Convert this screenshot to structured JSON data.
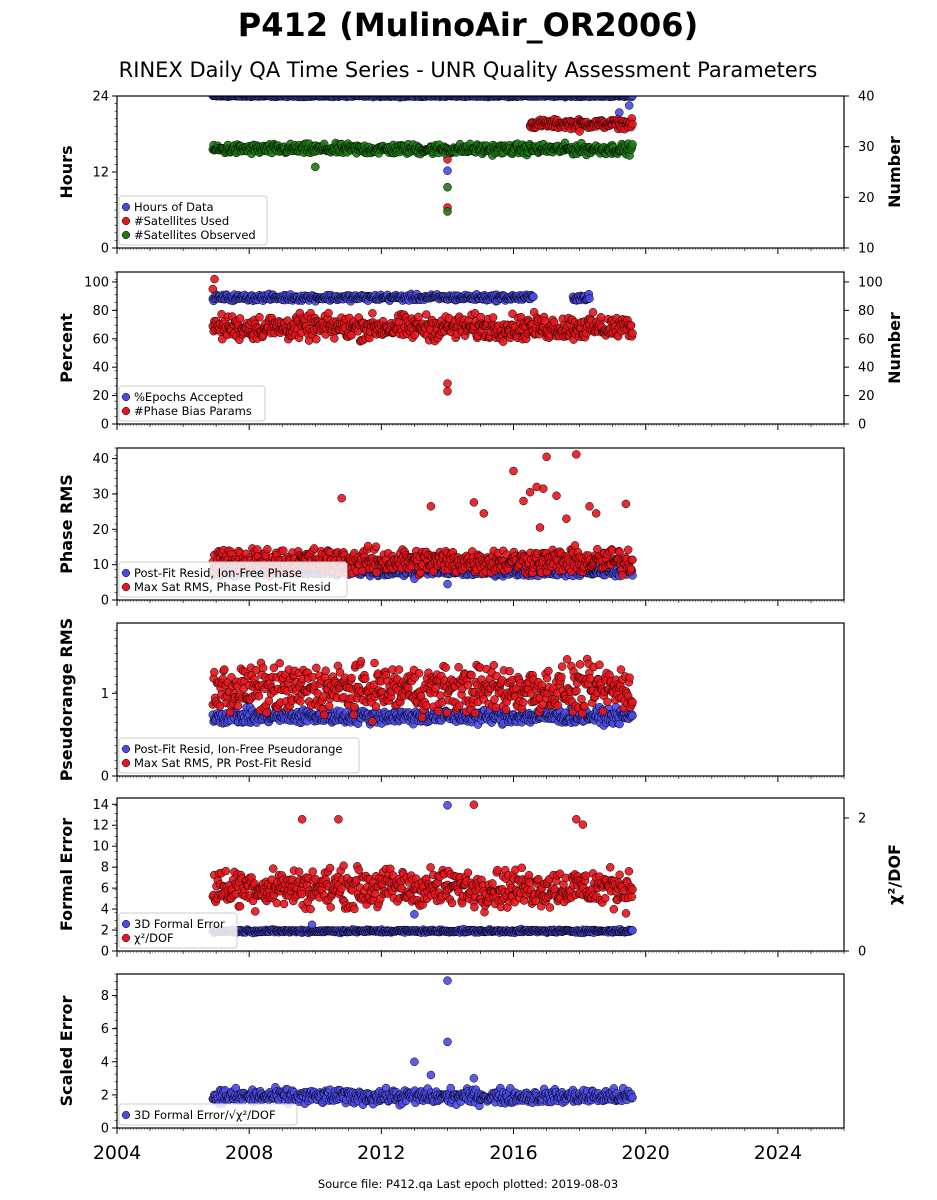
{
  "title": "P412 (MulinoAir_OR2006)",
  "subtitle": "RINEX Daily QA Time Series - UNR Quality Assessment Parameters",
  "source_text": "Source file: P412.qa Last epoch plotted: 2019-08-03",
  "x_axis": {
    "range": [
      2004,
      2026
    ],
    "ticks": [
      "2004",
      "2008",
      "2012",
      "2016",
      "2020",
      "2024"
    ]
  },
  "colors": {
    "blue": "#4a4ae8",
    "red": "#e8141c",
    "green": "#1c7a12",
    "gray": "#c8c8cc"
  },
  "panels": [
    {
      "ylabel": "Hours",
      "ylabel2": "Number",
      "yticks": [
        "0",
        "12",
        "24"
      ],
      "y2ticks": [
        "10",
        "20",
        "30",
        "40"
      ],
      "legend": [
        "Hours of Data",
        "#Satellites Used",
        "#Satellites Observed"
      ]
    },
    {
      "ylabel": "Percent",
      "ylabel2": "Number",
      "yticks": [
        "0",
        "20",
        "40",
        "60",
        "80",
        "100"
      ],
      "y2ticks": [
        "0",
        "20",
        "40",
        "60",
        "80",
        "100"
      ],
      "legend": [
        "%Epochs Accepted",
        "#Phase Bias Params"
      ]
    },
    {
      "ylabel": "Phase RMS",
      "yticks": [
        "0",
        "10",
        "20",
        "30",
        "40"
      ],
      "legend": [
        "Post-Fit Resid, Ion-Free Phase",
        "Max Sat RMS, Phase Post-Fit Resid"
      ]
    },
    {
      "ylabel": "Pseudorange RMS",
      "yticks": [
        "0",
        "1"
      ],
      "legend": [
        "Post-Fit Resid, Ion-Free Pseudorange",
        "Max Sat RMS, PR Post-Fit Resid"
      ]
    },
    {
      "ylabel": "Formal Error",
      "ylabel2": "χ²/DOF",
      "yticks": [
        "0",
        "2",
        "4",
        "6",
        "8",
        "10",
        "12",
        "14"
      ],
      "y2ticks": [
        "0",
        "2"
      ],
      "legend": [
        "3D Formal Error",
        "χ²/DOF"
      ]
    },
    {
      "ylabel": "Scaled Error",
      "yticks": [
        "0",
        "2",
        "4",
        "6",
        "8"
      ],
      "legend": [
        "3D Formal Error/√χ²/DOF"
      ]
    }
  ],
  "chart_data": [
    {
      "type": "scatter",
      "ylabel": "Hours",
      "ylim": [
        0,
        24
      ],
      "y2label": "Number",
      "y2lim": [
        10,
        40
      ],
      "series": [
        {
          "name": "Hours of Data",
          "axis": "left",
          "color": "#4a4ae8",
          "x_range": [
            2006.9,
            2019.6
          ],
          "typical": 24,
          "spread": 0.1,
          "outliers": [
            [
              2014.0,
              12.2
            ],
            [
              2019.5,
              22.5
            ],
            [
              2019.2,
              21.4
            ]
          ]
        },
        {
          "name": "#Satellites Used",
          "axis": "right",
          "color": "#e8141c",
          "x_range": [
            2016.5,
            2019.6
          ],
          "typical": 34.5,
          "spread": 0.6,
          "outliers": [
            [
              2014.0,
              27.5
            ],
            [
              2014.0,
              18.0
            ],
            [
              2018.0,
              33.0
            ]
          ]
        },
        {
          "name": "#Satellites Observed",
          "axis": "right",
          "color": "#1c7a12",
          "x_range": [
            2006.9,
            2019.6
          ],
          "typical": 29.5,
          "spread": 0.7,
          "outliers": [
            [
              2014.0,
              17.2
            ],
            [
              2014.0,
              22.0
            ],
            [
              2010.0,
              26.0
            ]
          ]
        }
      ]
    },
    {
      "type": "scatter",
      "ylabel": "Percent",
      "ylim": [
        0,
        107
      ],
      "y2label": "Number",
      "y2lim": [
        0,
        107
      ],
      "series": [
        {
          "name": "%Epochs Accepted",
          "axis": "left",
          "color": "#4a4ae8",
          "x_range": [
            2006.9,
            2016.6
          ],
          "typical": 89,
          "spread": 1.5,
          "extra_ranges": [
            [
              2017.8,
              2018.3
            ]
          ],
          "outliers": [
            [
              2019.5,
              65
            ]
          ]
        },
        {
          "name": "#Phase Bias Params",
          "axis": "right",
          "color": "#e8141c",
          "x_range": [
            2006.9,
            2019.6
          ],
          "typical": 68,
          "spread": 6,
          "outliers": [
            [
              2014.0,
              28.5
            ],
            [
              2014.0,
              23.0
            ],
            [
              2006.95,
              102
            ],
            [
              2006.9,
              95
            ]
          ]
        }
      ]
    },
    {
      "type": "scatter",
      "ylabel": "Phase RMS",
      "ylim": [
        0,
        43
      ],
      "series": [
        {
          "name": "Post-Fit Resid, Ion-Free Phase",
          "color": "#4a4ae8",
          "x_range": [
            2006.9,
            2019.6
          ],
          "typical": 8,
          "spread": 0.8,
          "outliers": [
            [
              2014.0,
              4.5
            ],
            [
              2013.0,
              6.0
            ]
          ]
        },
        {
          "name": "Max Sat RMS, Phase Post-Fit Resid",
          "color": "#e8141c",
          "x_range": [
            2006.9,
            2019.6
          ],
          "typical": 11,
          "spread": 2.5,
          "outliers": [
            [
              2017.9,
              41.2
            ],
            [
              2017.0,
              40.5
            ],
            [
              2016.0,
              36.5
            ],
            [
              2016.7,
              32.0
            ],
            [
              2016.5,
              30.5
            ],
            [
              2016.9,
              31.5
            ],
            [
              2016.3,
              28.0
            ],
            [
              2017.3,
              29.5
            ],
            [
              2010.8,
              28.8
            ],
            [
              2015.1,
              24.5
            ],
            [
              2018.5,
              24.5
            ],
            [
              2019.4,
              27.2
            ],
            [
              2014.8,
              27.6
            ],
            [
              2017.6,
              23.0
            ],
            [
              2018.3,
              26.5
            ],
            [
              2016.8,
              20.5
            ],
            [
              2013.5,
              26.5
            ]
          ]
        }
      ]
    },
    {
      "type": "scatter",
      "ylabel": "Pseudorange RMS",
      "ylim": [
        0,
        1.85
      ],
      "series": [
        {
          "name": "Post-Fit Resid, Ion-Free Pseudorange",
          "color": "#4a4ae8",
          "x_range": [
            2006.9,
            2019.6
          ],
          "typical": 0.72,
          "spread": 0.06
        },
        {
          "name": "Max Sat RMS, PR Post-Fit Resid",
          "color": "#e8141c",
          "x_range": [
            2006.9,
            2019.6
          ],
          "typical": 1.05,
          "spread": 0.2,
          "max": 1.82
        }
      ]
    },
    {
      "type": "scatter",
      "ylabel": "Formal Error",
      "ylim": [
        0,
        14.6
      ],
      "y2label": "χ²/DOF",
      "y2lim": [
        0,
        2.3
      ],
      "series": [
        {
          "name": "3D Formal Error",
          "axis": "left",
          "color": "#4a4ae8",
          "x_range": [
            2006.9,
            2019.6
          ],
          "typical": 1.9,
          "spread": 0.1,
          "outliers": [
            [
              2014.0,
              13.9
            ],
            [
              2013.0,
              3.5
            ],
            [
              2009.9,
              2.5
            ]
          ]
        },
        {
          "name": "χ²/DOF",
          "axis": "right",
          "color": "#e8141c",
          "x_range": [
            2006.9,
            2019.6
          ],
          "typical": 0.95,
          "spread": 0.2,
          "outliers": [
            [
              2014.8,
              2.2
            ],
            [
              2009.6,
              1.98
            ],
            [
              2010.7,
              1.98
            ],
            [
              2017.9,
              1.98
            ],
            [
              2018.1,
              1.9
            ]
          ]
        }
      ]
    },
    {
      "type": "scatter",
      "ylabel": "Scaled Error",
      "ylim": [
        0,
        9.3
      ],
      "series": [
        {
          "name": "3D Formal Error/√χ²/DOF",
          "color": "#4a4ae8",
          "x_range": [
            2006.9,
            2019.6
          ],
          "typical": 1.9,
          "spread": 0.3,
          "outliers": [
            [
              2014.0,
              8.9
            ],
            [
              2014.0,
              5.2
            ],
            [
              2013.0,
              4.0
            ],
            [
              2014.8,
              3.0
            ],
            [
              2013.5,
              3.2
            ]
          ]
        }
      ]
    }
  ]
}
